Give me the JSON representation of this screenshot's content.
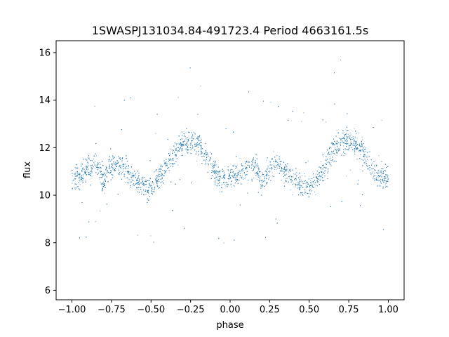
{
  "chart_data": {
    "type": "scatter",
    "title": "1SWASPJ131034.84-491723.4 Period 4663161.5s",
    "xlabel": "phase",
    "ylabel": "flux",
    "xlim": [
      -1.1,
      1.1
    ],
    "ylim": [
      5.6,
      16.5
    ],
    "xticks": [
      -1.0,
      -0.75,
      -0.5,
      -0.25,
      0.0,
      0.25,
      0.5,
      0.75,
      1.0
    ],
    "xtick_labels": [
      "−1.00",
      "−0.75",
      "−0.50",
      "−0.25",
      "0.00",
      "0.25",
      "0.50",
      "0.75",
      "1.00"
    ],
    "yticks": [
      6,
      8,
      10,
      12,
      14,
      16
    ],
    "ytick_labels": [
      "6",
      "8",
      "10",
      "12",
      "14",
      "16"
    ],
    "grid": false,
    "marker_color": "#1f77b4",
    "series": [
      {
        "x": [
          -1.0,
          -0.95,
          -0.9,
          -0.85,
          -0.8,
          -0.75,
          -0.7,
          -0.65,
          -0.6,
          -0.55,
          -0.5,
          -0.45,
          -0.4,
          -0.35,
          -0.3,
          -0.25,
          -0.2,
          -0.15,
          -0.1,
          -0.05,
          0.0,
          0.05,
          0.1,
          0.15,
          0.2,
          0.25,
          0.3,
          0.35,
          0.4,
          0.45,
          0.5,
          0.55,
          0.6,
          0.65,
          0.7,
          0.75,
          0.8,
          0.85,
          0.9,
          0.95,
          1.0
        ],
        "y": [
          10.7,
          10.8,
          11.2,
          11.3,
          10.6,
          11.2,
          11.3,
          11.0,
          10.7,
          10.4,
          10.3,
          10.7,
          11.2,
          11.9,
          12.2,
          12.3,
          12.2,
          11.7,
          11.0,
          10.7,
          10.7,
          10.8,
          11.2,
          11.3,
          10.6,
          11.2,
          11.3,
          11.0,
          10.7,
          10.4,
          10.3,
          10.7,
          11.2,
          11.9,
          12.2,
          12.3,
          12.2,
          11.7,
          11.0,
          10.7,
          10.7
        ]
      }
    ]
  }
}
